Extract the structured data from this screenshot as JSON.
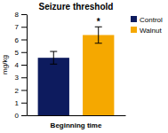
{
  "chart_data": {
    "type": "bar",
    "title": "Seizure threshold",
    "xlabel": "Beginning time",
    "ylabel": "mg/kg",
    "categories": [
      "Control",
      "Walnut"
    ],
    "values": [
      4.55,
      6.35
    ],
    "errors": [
      0.5,
      0.65
    ],
    "colors": [
      "#0d1b5e",
      "#f5a800"
    ],
    "ylim": [
      0,
      8
    ],
    "yticks": [
      0,
      1,
      2,
      3,
      4,
      5,
      6,
      7,
      8
    ],
    "annotations": [
      {
        "text": "*",
        "category": "Walnut"
      }
    ],
    "legend": "right",
    "grid": false,
    "tick_labels": "y"
  }
}
